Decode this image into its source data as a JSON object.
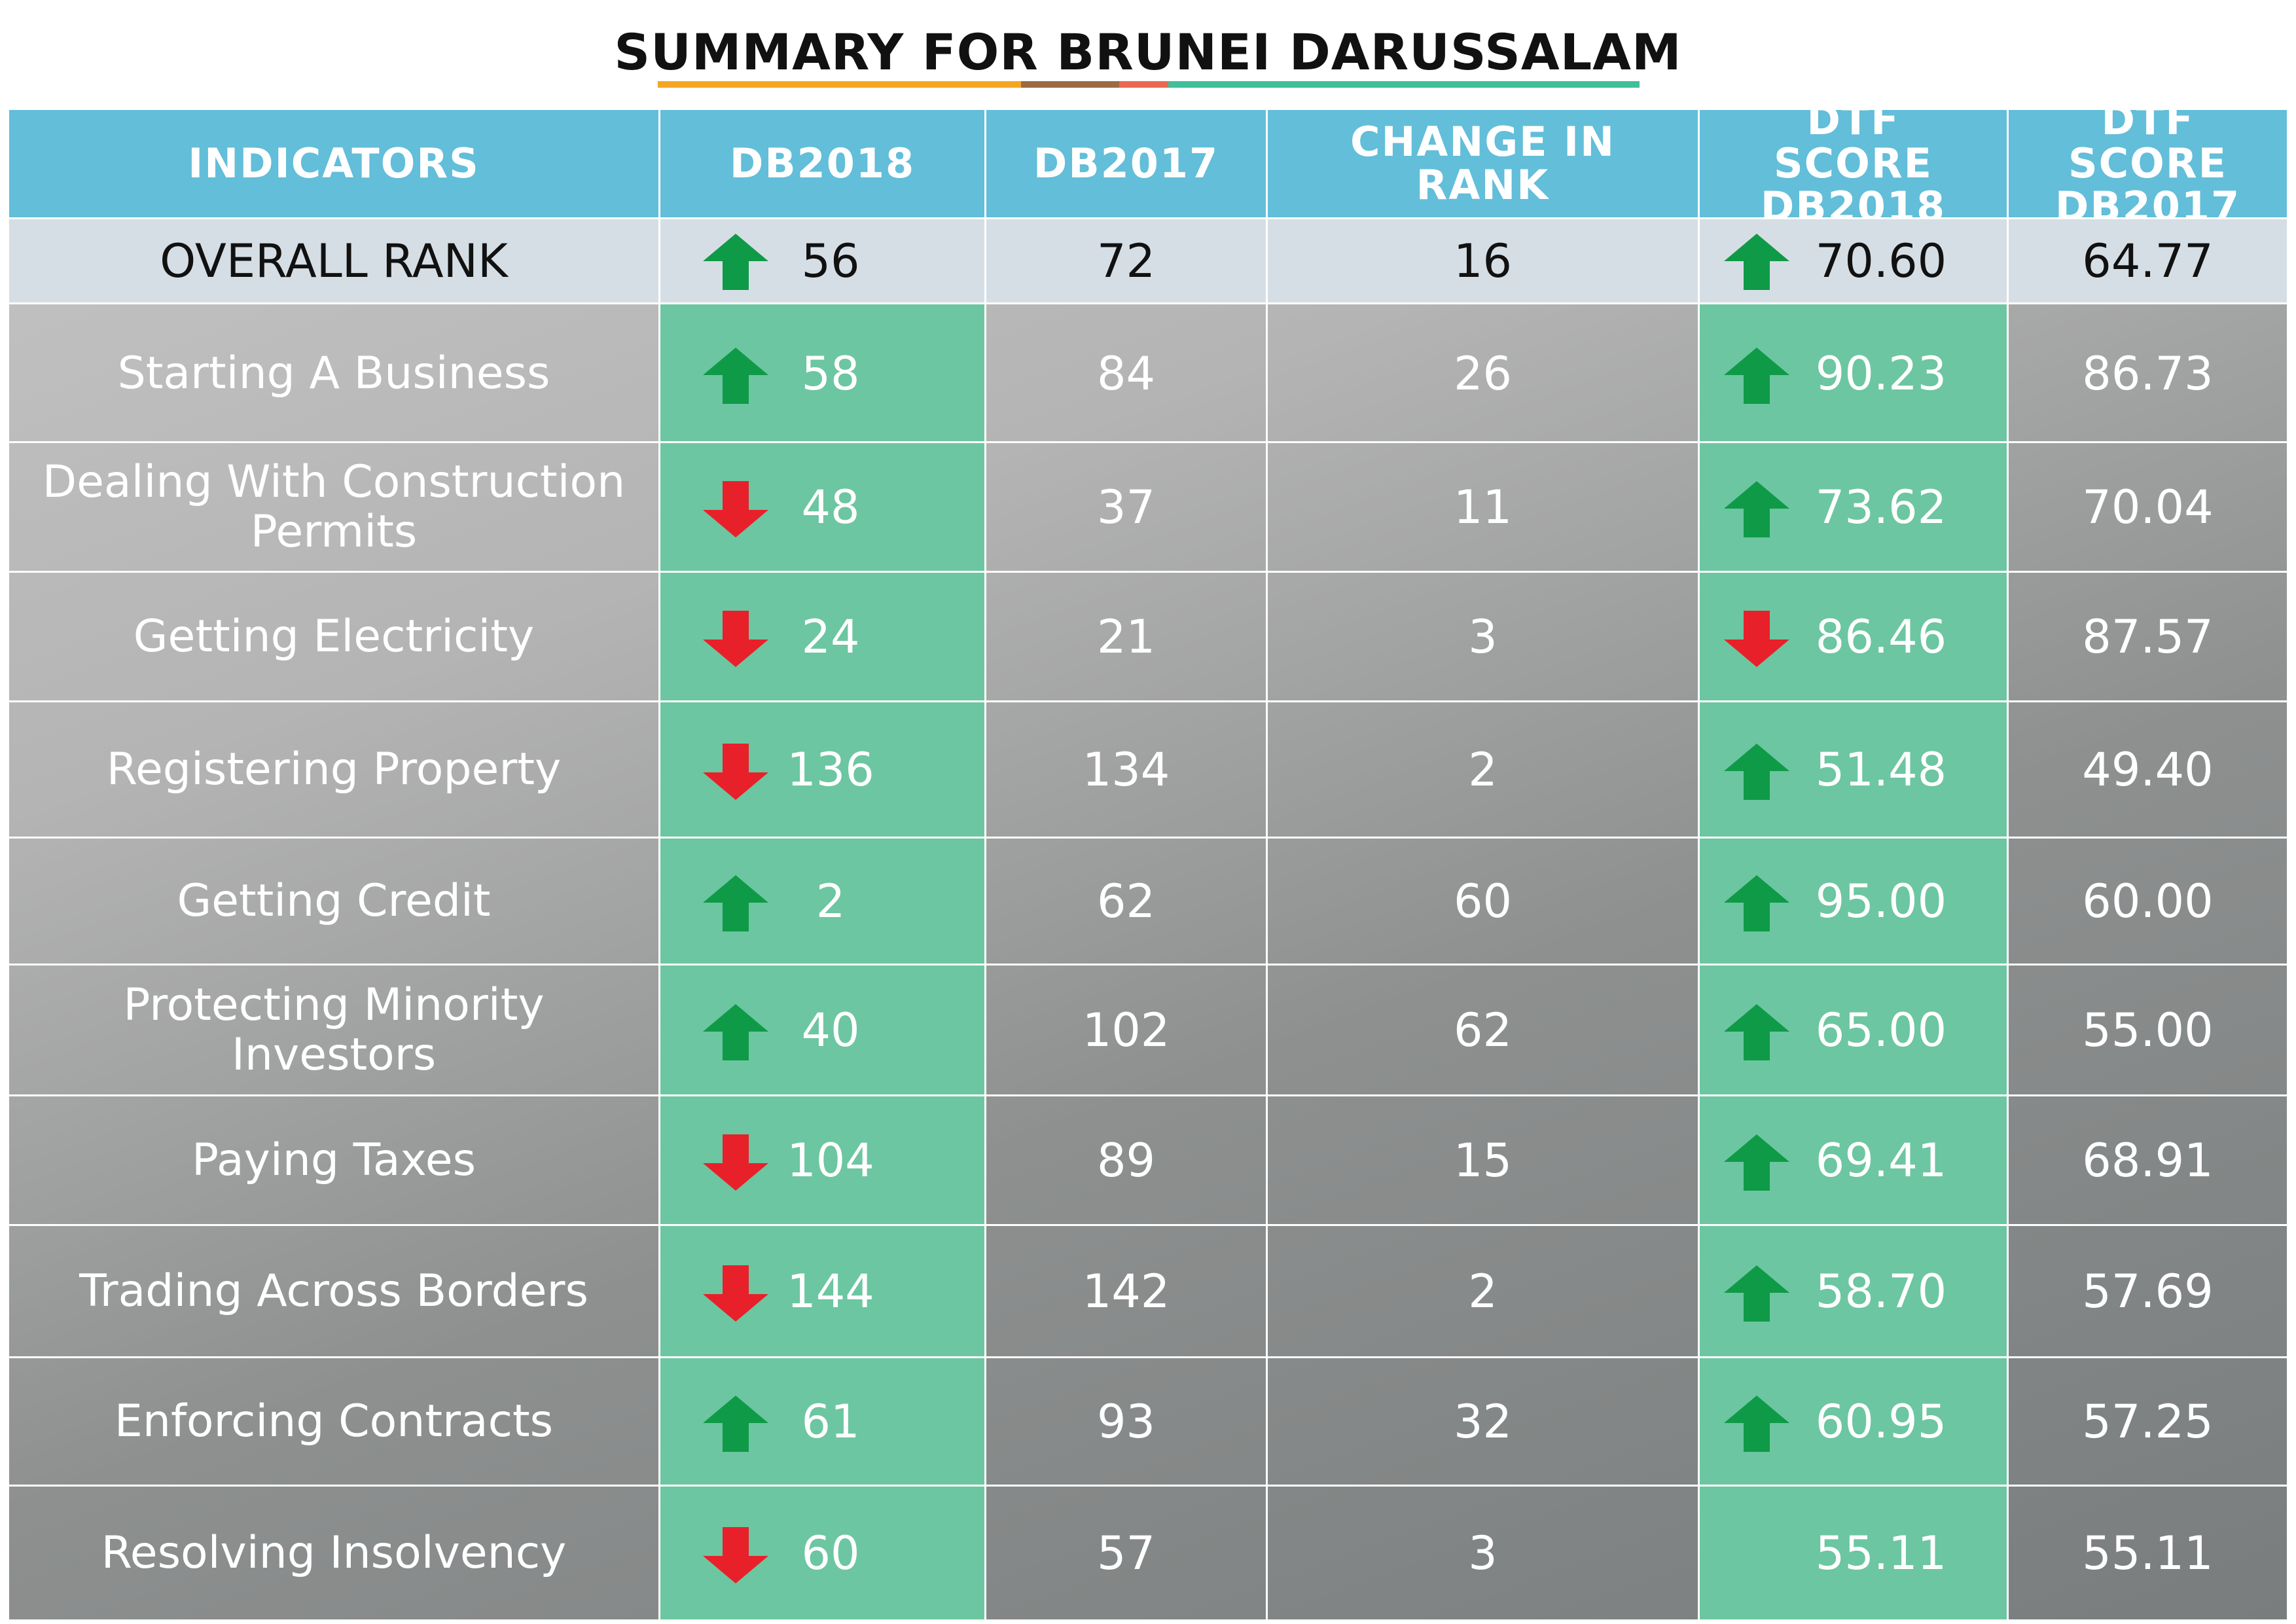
{
  "title": "SUMMARY FOR BRUNEI DARUSSALAM",
  "colors": {
    "header_bg": "#62bed9",
    "overall_bg": "#d6dee5",
    "highlight_col": "#6cc6a1",
    "up_arrow": "#0f9a47",
    "down_arrow": "#e8202a",
    "title_underline": [
      "#f4a623",
      "#9b6b45",
      "#e96a51",
      "#3fbf9a"
    ]
  },
  "chart_data": {
    "type": "table",
    "title": "SUMMARY FOR BRUNEI DARUSSALAM",
    "columns": [
      "INDICATORS",
      "DB2018",
      "DB2017",
      "CHANGE IN RANK",
      "DTF SCORE DB2018",
      "DTF SCORE DB2017"
    ],
    "overall": {
      "label": "OVERALL RANK",
      "db2018": "56",
      "db2018_arrow": "up-arrow-icon",
      "db2017": "72",
      "change": "16",
      "dtf2018": "70.60",
      "dtf2018_arrow": "up-arrow-icon",
      "dtf2017": "64.77"
    },
    "rows": [
      {
        "label": "Starting A Business",
        "db2018": "58",
        "db2018_arrow": "up-arrow-icon",
        "db2017": "84",
        "change": "26",
        "dtf2018": "90.23",
        "dtf2018_arrow": "up-arrow-icon",
        "dtf2017": "86.73"
      },
      {
        "label": "Dealing With Construction Permits",
        "db2018": "48",
        "db2018_arrow": "down-arrow-icon",
        "db2017": "37",
        "change": "11",
        "dtf2018": "73.62",
        "dtf2018_arrow": "up-arrow-icon",
        "dtf2017": "70.04"
      },
      {
        "label": "Getting Electricity",
        "db2018": "24",
        "db2018_arrow": "down-arrow-icon",
        "db2017": "21",
        "change": "3",
        "dtf2018": "86.46",
        "dtf2018_arrow": "down-arrow-icon",
        "dtf2017": "87.57"
      },
      {
        "label": "Registering Property",
        "db2018": "136",
        "db2018_arrow": "down-arrow-icon",
        "db2017": "134",
        "change": "2",
        "dtf2018": "51.48",
        "dtf2018_arrow": "up-arrow-icon",
        "dtf2017": "49.40"
      },
      {
        "label": "Getting Credit",
        "db2018": "2",
        "db2018_arrow": "up-arrow-icon",
        "db2017": "62",
        "change": "60",
        "dtf2018": "95.00",
        "dtf2018_arrow": "up-arrow-icon",
        "dtf2017": "60.00"
      },
      {
        "label": "Protecting Minority Investors",
        "db2018": "40",
        "db2018_arrow": "up-arrow-icon",
        "db2017": "102",
        "change": "62",
        "dtf2018": "65.00",
        "dtf2018_arrow": "up-arrow-icon",
        "dtf2017": "55.00"
      },
      {
        "label": "Paying Taxes",
        "db2018": "104",
        "db2018_arrow": "down-arrow-icon",
        "db2017": "89",
        "change": "15",
        "dtf2018": "69.41",
        "dtf2018_arrow": "up-arrow-icon",
        "dtf2017": "68.91"
      },
      {
        "label": "Trading Across Borders",
        "db2018": "144",
        "db2018_arrow": "down-arrow-icon",
        "db2017": "142",
        "change": "2",
        "dtf2018": "58.70",
        "dtf2018_arrow": "up-arrow-icon",
        "dtf2017": "57.69"
      },
      {
        "label": "Enforcing Contracts",
        "db2018": "61",
        "db2018_arrow": "up-arrow-icon",
        "db2017": "93",
        "change": "32",
        "dtf2018": "60.95",
        "dtf2018_arrow": "up-arrow-icon",
        "dtf2017": "57.25"
      },
      {
        "label": "Resolving Insolvency",
        "db2018": "60",
        "db2018_arrow": "down-arrow-icon",
        "db2017": "57",
        "change": "3",
        "dtf2018": "55.11",
        "dtf2018_arrow": "",
        "dtf2017": "55.11"
      }
    ]
  }
}
